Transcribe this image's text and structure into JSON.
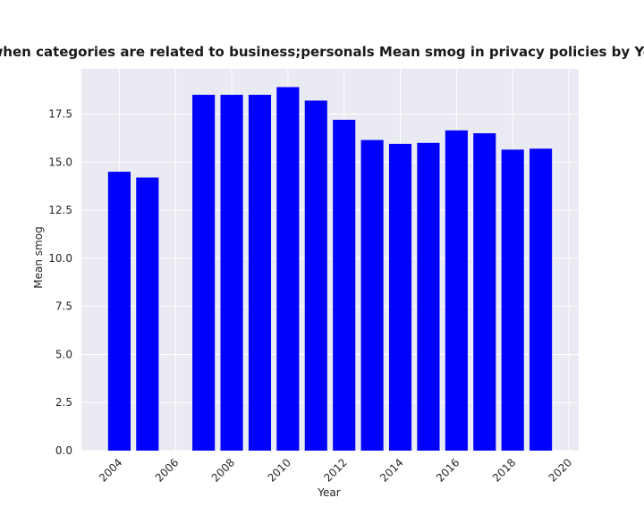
{
  "chart_data": {
    "type": "bar",
    "title": "when categories are related to business;personals Mean smog in privacy policies by Year",
    "xlabel": "Year",
    "ylabel": "Mean smog",
    "x": [
      2004,
      2005,
      2007,
      2008,
      2009,
      2010,
      2011,
      2012,
      2013,
      2014,
      2015,
      2016,
      2017,
      2018,
      2019
    ],
    "values": [
      14.5,
      14.2,
      18.5,
      18.5,
      18.5,
      18.9,
      18.2,
      17.2,
      16.15,
      15.95,
      16.0,
      16.65,
      16.5,
      15.65,
      15.7
    ],
    "xlim": [
      2002.65,
      2020.35
    ],
    "ylim": [
      0,
      19.85
    ],
    "xticks": [
      "2004",
      "2006",
      "2008",
      "2010",
      "2012",
      "2014",
      "2016",
      "2018",
      "2020"
    ],
    "yticks": [
      "0.0",
      "2.5",
      "5.0",
      "7.5",
      "10.0",
      "12.5",
      "15.0",
      "17.5"
    ],
    "grid": true,
    "bar_color": "#0000ff",
    "plot_background": "#eaeaf2",
    "grid_color": "#ffffff"
  }
}
